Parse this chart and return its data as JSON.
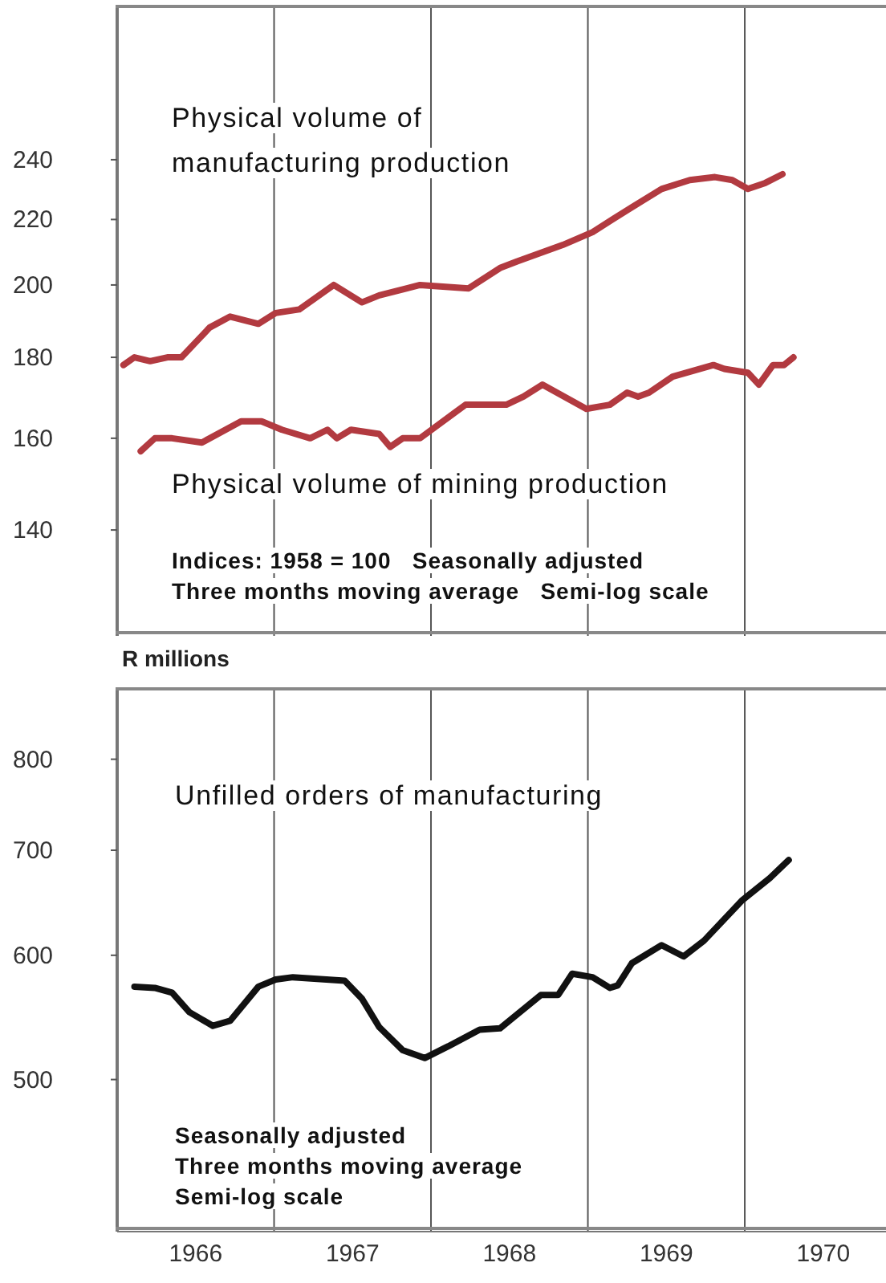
{
  "chart_data": [
    {
      "type": "line",
      "log": "y",
      "xlim": [
        1966,
        1970.9
      ],
      "ylim": [
        120,
        300
      ],
      "yticks": [
        140,
        160,
        180,
        200,
        220,
        240
      ],
      "tick_labels": "y",
      "grid": false,
      "ref_lines": [
        {
          "axis": "x",
          "value": 1967,
          "color": "#555555"
        },
        {
          "axis": "x",
          "value": 1968,
          "color": "#555555"
        },
        {
          "axis": "x",
          "value": 1969,
          "color": "#555555"
        },
        {
          "axis": "x",
          "value": 1970,
          "color": "#555555"
        }
      ],
      "annotations": [
        "Indices: 1958 = 100   Seasonally adjusted",
        "Three months moving average   Semi-log scale"
      ],
      "series": [
        {
          "name": "Physical volume of manufacturing production",
          "color": "#b23a40",
          "x": [
            1966.04,
            1966.11,
            1966.21,
            1966.32,
            1966.41,
            1966.59,
            1966.72,
            1966.9,
            1967.01,
            1967.16,
            1967.38,
            1967.56,
            1967.67,
            1967.93,
            1968.24,
            1968.44,
            1968.55,
            1968.84,
            1969.03,
            1969.25,
            1969.47,
            1969.65,
            1969.81,
            1969.92,
            1970.02,
            1970.13,
            1970.24
          ],
          "values": [
            178,
            180,
            179,
            180,
            180,
            188,
            191,
            189,
            192,
            193,
            200,
            195,
            197,
            200,
            199,
            205,
            207,
            212,
            216,
            223,
            230,
            233,
            234,
            233,
            230,
            232,
            235
          ]
        },
        {
          "name": "Physical volume of mining production",
          "color": "#b23a40",
          "x": [
            1966.15,
            1966.24,
            1966.35,
            1966.54,
            1966.79,
            1966.92,
            1967.05,
            1967.23,
            1967.34,
            1967.4,
            1967.49,
            1967.67,
            1967.74,
            1967.82,
            1967.93,
            1968.22,
            1968.48,
            1968.59,
            1968.71,
            1968.99,
            1969.14,
            1969.25,
            1969.32,
            1969.39,
            1969.54,
            1969.8,
            1969.87,
            1970.02,
            1970.09,
            1970.18,
            1970.25,
            1970.31
          ],
          "values": [
            157,
            160,
            160,
            159,
            164,
            164,
            162,
            160,
            162,
            160,
            162,
            161,
            158,
            160,
            160,
            168,
            168,
            170,
            173,
            167,
            168,
            171,
            170,
            171,
            175,
            178,
            177,
            176,
            173,
            178,
            178,
            180
          ]
        }
      ]
    },
    {
      "type": "line",
      "log": "y",
      "ylabel": "R millions",
      "xlim": [
        1966,
        1970.9
      ],
      "ylim": [
        400,
        887
      ],
      "yticks": [
        500,
        600,
        700,
        800
      ],
      "xticks": [
        {
          "value": 1966.5,
          "label": "1966"
        },
        {
          "value": 1967.5,
          "label": "1967"
        },
        {
          "value": 1968.5,
          "label": "1968"
        },
        {
          "value": 1969.5,
          "label": "1969"
        },
        {
          "value": 1970.5,
          "label": "1970"
        }
      ],
      "grid": false,
      "ref_lines": [
        {
          "axis": "x",
          "value": 1967,
          "color": "#555555"
        },
        {
          "axis": "x",
          "value": 1968,
          "color": "#555555"
        },
        {
          "axis": "x",
          "value": 1969,
          "color": "#555555"
        },
        {
          "axis": "x",
          "value": 1970,
          "color": "#555555"
        }
      ],
      "annotations": [
        "Seasonally adjusted",
        "Three months moving average",
        "Semi-log scale"
      ],
      "series": [
        {
          "name": "Unfilled orders of manufacturing",
          "color": "#111111",
          "x": [
            1966.11,
            1966.24,
            1966.35,
            1966.46,
            1966.61,
            1966.72,
            1966.9,
            1967.01,
            1967.12,
            1967.45,
            1967.56,
            1967.67,
            1967.82,
            1967.96,
            1968.11,
            1968.31,
            1968.44,
            1968.7,
            1968.81,
            1968.9,
            1969.03,
            1969.14,
            1969.19,
            1969.28,
            1969.47,
            1969.61,
            1969.74,
            1969.98,
            1970.16,
            1970.28
          ],
          "values": [
            573,
            572,
            568,
            552,
            541,
            545,
            573,
            579,
            581,
            578,
            563,
            540,
            522,
            516,
            525,
            538,
            539,
            566,
            566,
            584,
            581,
            572,
            574,
            593,
            609,
            599,
            613,
            650,
            672,
            690
          ]
        }
      ]
    }
  ]
}
